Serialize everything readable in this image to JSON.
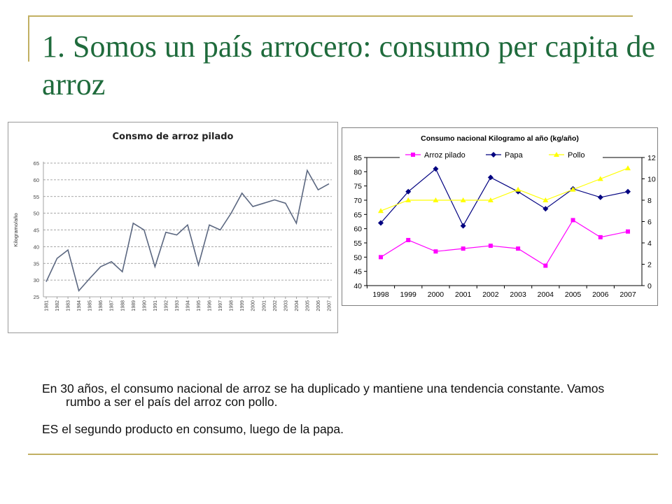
{
  "slide": {
    "title": "1. Somos un país arrocero: consumo per capita de arroz",
    "paragraphs": [
      "En 30 años, el consumo nacional de arroz se ha duplicado y mantiene una tendencia constante. Vamos rumbo a ser el país del arroz con pollo.",
      "ES el segundo producto en consumo, luego de la papa."
    ],
    "accent_color": "#c2b062",
    "title_color": "#1f6b3c"
  },
  "chart_data": [
    {
      "type": "line",
      "title": "Consmo de arroz pilado",
      "ylabel": "Kilogramo/año",
      "xlabel": "",
      "x": [
        "1981",
        "1982",
        "1983",
        "1984",
        "1985",
        "1986",
        "1987",
        "1988",
        "1989",
        "1990",
        "1991",
        "1992",
        "1993",
        "1994",
        "1995",
        "1996",
        "1997",
        "1998",
        "1999",
        "2000",
        "2001",
        "2002",
        "2003",
        "2004",
        "2005",
        "2006",
        "2007"
      ],
      "series": [
        {
          "color": "#5b6780",
          "values": [
            29.5,
            36.5,
            39,
            26.8,
            30.5,
            34,
            35.5,
            32.5,
            47,
            45,
            34,
            44.3,
            43.5,
            46.5,
            34.5,
            46.5,
            45,
            50,
            56,
            52,
            53,
            54,
            53,
            47,
            62.8,
            57,
            58.8
          ]
        }
      ],
      "ylim": [
        25,
        65
      ],
      "yticks": [
        "25",
        "30",
        "35",
        "40",
        "45",
        "50",
        "55",
        "60",
        "65"
      ],
      "grid": true
    },
    {
      "type": "line",
      "title": "Consumo nacional Kilogramo al año (kg/año)",
      "x": [
        "1998",
        "1999",
        "2000",
        "2001",
        "2002",
        "2003",
        "2004",
        "2005",
        "2006",
        "2007"
      ],
      "series": [
        {
          "name": "Arroz pilado",
          "axis": "left",
          "color": "#ff00ff",
          "marker": "square",
          "values": [
            50,
            56,
            52,
            53,
            54,
            53,
            47,
            63,
            57,
            59
          ]
        },
        {
          "name": "Papa",
          "axis": "left",
          "color": "#000080",
          "marker": "diamond",
          "values": [
            62,
            73,
            81,
            61,
            78,
            73,
            67,
            74,
            71,
            73
          ]
        },
        {
          "name": "Pollo",
          "axis": "right",
          "color": "#ffff00",
          "marker": "triangle",
          "values": [
            7,
            8,
            8,
            8,
            8,
            9,
            8,
            9,
            10,
            11
          ]
        }
      ],
      "ylim_left": [
        40,
        85
      ],
      "yticks_left": [
        "40",
        "45",
        "50",
        "55",
        "60",
        "65",
        "70",
        "75",
        "80",
        "85"
      ],
      "ylim_right": [
        0,
        12
      ],
      "yticks_right": [
        "0",
        "2",
        "4",
        "6",
        "8",
        "10",
        "12"
      ],
      "legend": "top",
      "grid": false
    }
  ]
}
